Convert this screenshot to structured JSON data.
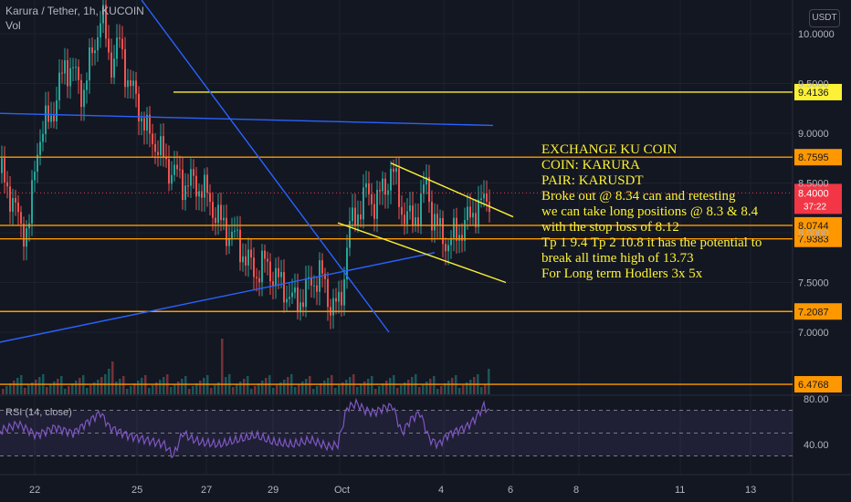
{
  "header": {
    "symbol_line": "Karura / Tether, 1h, KUCOIN",
    "volume_label": "Vol",
    "rsi_label": "RSI (14, close)",
    "currency_badge": "USDT",
    "countdown": "37:22"
  },
  "note": {
    "lines": [
      "EXCHANGE KU COIN",
      "COIN: KARURA",
      "PAIR: KARUSDT",
      "Broke out @ 8.34 can and retesting",
      "we can take long positions @ 8.3 & 8.4",
      "with the stop loss of 8.12",
      "Tp 1 9.4 Tp 2 10.8 it has the potential to",
      "break all time high of 13.73",
      "For Long term Hodlers 3x 5x"
    ]
  },
  "colors": {
    "background": "#131722",
    "up": "#26a69a",
    "down": "#ef5350",
    "level_line": "#ff9800",
    "yellow_line": "#fcf136",
    "trend_line": "#2962ff",
    "rsi_line": "#7e57c2",
    "price_tag": "#f23645"
  },
  "chart_data": {
    "type": "candlestick",
    "symbol": "Karura / Tether",
    "interval": "1h",
    "exchange": "KUCOIN",
    "ylim": [
      6.45,
      10.2
    ],
    "y_ticks": [
      10.0,
      9.5,
      9.0,
      8.5,
      8.0,
      7.5,
      7.0
    ],
    "x_ticks": [
      "22",
      "25",
      "27",
      "29",
      "Oct",
      "4",
      "6",
      "8",
      "11",
      "13"
    ],
    "current_price": 8.4,
    "horizontal_levels": [
      {
        "value": 9.4136,
        "label": "9.4136",
        "color": "yellow"
      },
      {
        "value": 8.7595,
        "label": "8.7595",
        "color": "orange"
      },
      {
        "value": 8.0744,
        "label": "8.0744",
        "color": "orange"
      },
      {
        "value": 7.9383,
        "label": "7.9383",
        "color": "orange"
      },
      {
        "value": 7.2087,
        "label": "7.2087",
        "color": "orange"
      },
      {
        "value": 6.4768,
        "label": "6.4768",
        "color": "orange"
      }
    ],
    "price_path": [
      [
        0,
        8.6
      ],
      [
        10,
        8.4
      ],
      [
        20,
        8.1
      ],
      [
        30,
        8.0
      ],
      [
        40,
        8.9
      ],
      [
        50,
        9.1
      ],
      [
        60,
        9.3
      ],
      [
        70,
        9.7
      ],
      [
        80,
        9.6
      ],
      [
        90,
        9.4
      ],
      [
        100,
        9.8
      ],
      [
        110,
        10.2
      ],
      [
        120,
        9.7
      ],
      [
        130,
        9.9
      ],
      [
        140,
        9.5
      ],
      [
        150,
        9.3
      ],
      [
        160,
        9.0
      ],
      [
        170,
        8.9
      ],
      [
        180,
        8.7
      ],
      [
        190,
        8.6
      ],
      [
        200,
        8.5
      ],
      [
        210,
        8.5
      ],
      [
        220,
        8.45
      ],
      [
        230,
        8.3
      ],
      [
        240,
        8.1
      ],
      [
        250,
        8.0
      ],
      [
        260,
        7.9
      ],
      [
        270,
        7.7
      ],
      [
        280,
        7.6
      ],
      [
        290,
        7.7
      ],
      [
        300,
        7.55
      ],
      [
        310,
        7.45
      ],
      [
        320,
        7.3
      ],
      [
        330,
        7.35
      ],
      [
        340,
        7.5
      ],
      [
        350,
        7.6
      ],
      [
        360,
        7.3
      ],
      [
        370,
        7.25
      ],
      [
        375,
        7.5
      ],
      [
        380,
        8.0
      ],
      [
        390,
        8.2
      ],
      [
        400,
        8.4
      ],
      [
        410,
        8.3
      ],
      [
        420,
        8.45
      ],
      [
        428,
        8.65
      ],
      [
        435,
        8.4
      ],
      [
        440,
        8.2
      ],
      [
        450,
        8.1
      ],
      [
        460,
        8.3
      ],
      [
        466,
        8.5
      ],
      [
        472,
        8.2
      ],
      [
        480,
        8.0
      ],
      [
        490,
        7.9
      ],
      [
        500,
        8.0
      ],
      [
        510,
        8.1
      ],
      [
        520,
        8.25
      ],
      [
        530,
        8.3
      ],
      [
        536,
        8.4
      ]
    ],
    "rsi": {
      "label": "RSI (14, close)",
      "y_ticks": [
        80.0,
        40.0
      ],
      "ylim": [
        20,
        85
      ],
      "band": [
        30,
        70
      ],
      "path": [
        [
          0,
          52
        ],
        [
          20,
          58
        ],
        [
          40,
          48
        ],
        [
          60,
          55
        ],
        [
          80,
          50
        ],
        [
          100,
          62
        ],
        [
          110,
          68
        ],
        [
          120,
          55
        ],
        [
          140,
          48
        ],
        [
          160,
          44
        ],
        [
          180,
          40
        ],
        [
          190,
          30
        ],
        [
          200,
          50
        ],
        [
          210,
          45
        ],
        [
          220,
          42
        ],
        [
          240,
          40
        ],
        [
          260,
          44
        ],
        [
          280,
          48
        ],
        [
          300,
          42
        ],
        [
          320,
          40
        ],
        [
          340,
          44
        ],
        [
          360,
          38
        ],
        [
          370,
          40
        ],
        [
          380,
          72
        ],
        [
          390,
          76
        ],
        [
          400,
          70
        ],
        [
          410,
          68
        ],
        [
          420,
          72
        ],
        [
          430,
          74
        ],
        [
          440,
          50
        ],
        [
          450,
          62
        ],
        [
          460,
          68
        ],
        [
          470,
          45
        ],
        [
          480,
          40
        ],
        [
          490,
          48
        ],
        [
          500,
          52
        ],
        [
          510,
          55
        ],
        [
          520,
          62
        ],
        [
          530,
          74
        ],
        [
          536,
          68
        ]
      ]
    }
  }
}
